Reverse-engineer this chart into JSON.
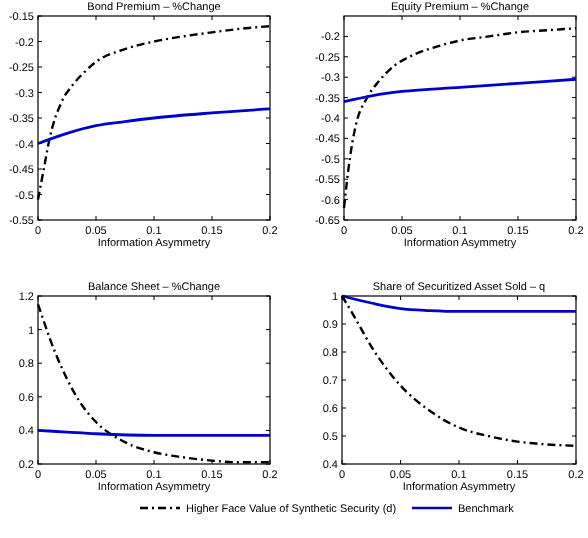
{
  "chart_data": [
    {
      "type": "line",
      "title": "Bond Premium – %Change",
      "xlabel": "Information Asymmetry",
      "xlim": [
        0,
        0.2
      ],
      "xticks": [
        0,
        0.05,
        0.1,
        0.15,
        0.2
      ],
      "ylim": [
        -0.55,
        -0.15
      ],
      "yticks": [
        -0.55,
        -0.5,
        -0.45,
        -0.4,
        -0.35,
        -0.3,
        -0.25,
        -0.2,
        -0.15
      ],
      "grid": false,
      "legend": false,
      "series": [
        {
          "color": "#000000",
          "line_style": "dashed",
          "x": [
            0,
            0.005,
            0.01,
            0.02,
            0.03,
            0.04,
            0.05,
            0.075,
            0.1,
            0.125,
            0.15,
            0.175,
            0.2
          ],
          "values": [
            -0.51,
            -0.45,
            -0.39,
            -0.32,
            -0.285,
            -0.26,
            -0.24,
            -0.215,
            -0.2,
            -0.19,
            -0.182,
            -0.175,
            -0.17
          ]
        },
        {
          "color": "#0000cc",
          "line_style": "solid",
          "x": [
            0,
            0.025,
            0.05,
            0.075,
            0.1,
            0.15,
            0.2
          ],
          "values": [
            -0.4,
            -0.38,
            -0.365,
            -0.357,
            -0.35,
            -0.34,
            -0.332
          ]
        }
      ]
    },
    {
      "type": "line",
      "title": "Equity Premium – %Change",
      "xlabel": "Information Asymmetry",
      "xlim": [
        0,
        0.2
      ],
      "xticks": [
        0,
        0.05,
        0.1,
        0.15,
        0.2
      ],
      "ylim": [
        -0.65,
        -0.15
      ],
      "yticks": [
        -0.65,
        -0.6,
        -0.55,
        -0.5,
        -0.45,
        -0.4,
        -0.35,
        -0.3,
        -0.25,
        -0.2
      ],
      "grid": false,
      "legend": false,
      "series": [
        {
          "color": "#000000",
          "line_style": "dashed",
          "x": [
            0,
            0.005,
            0.01,
            0.02,
            0.03,
            0.04,
            0.06,
            0.08,
            0.1,
            0.125,
            0.15,
            0.175,
            0.2
          ],
          "values": [
            -0.62,
            -0.5,
            -0.42,
            -0.35,
            -0.31,
            -0.28,
            -0.245,
            -0.225,
            -0.21,
            -0.2,
            -0.19,
            -0.185,
            -0.18
          ]
        },
        {
          "color": "#0000cc",
          "line_style": "solid",
          "x": [
            0,
            0.025,
            0.05,
            0.1,
            0.15,
            0.2
          ],
          "values": [
            -0.36,
            -0.345,
            -0.335,
            -0.325,
            -0.315,
            -0.305
          ]
        }
      ]
    },
    {
      "type": "line",
      "title": "Balance Sheet – %Change",
      "xlabel": "Information Asymmetry",
      "xlim": [
        0,
        0.2
      ],
      "xticks": [
        0,
        0.05,
        0.1,
        0.15,
        0.2
      ],
      "ylim": [
        0.2,
        1.2
      ],
      "yticks": [
        0.2,
        0.4,
        0.6,
        0.8,
        1,
        1.2
      ],
      "grid": false,
      "legend": false,
      "series": [
        {
          "color": "#000000",
          "line_style": "dashed",
          "x": [
            0,
            0.005,
            0.01,
            0.02,
            0.03,
            0.04,
            0.05,
            0.075,
            0.1,
            0.125,
            0.15,
            0.175,
            0.2
          ],
          "values": [
            1.15,
            1.05,
            0.95,
            0.78,
            0.64,
            0.53,
            0.45,
            0.33,
            0.27,
            0.24,
            0.22,
            0.21,
            0.21
          ]
        },
        {
          "color": "#0000cc",
          "line_style": "solid",
          "x": [
            0,
            0.025,
            0.05,
            0.1,
            0.15,
            0.2
          ],
          "values": [
            0.4,
            0.39,
            0.38,
            0.37,
            0.37,
            0.37
          ]
        }
      ]
    },
    {
      "type": "line",
      "title": "Share of Securitized Asset Sold – q",
      "xlabel": "Information Asymmetry",
      "xlim": [
        0,
        0.2
      ],
      "xticks": [
        0,
        0.05,
        0.1,
        0.15,
        0.2
      ],
      "ylim": [
        0.4,
        1
      ],
      "yticks": [
        0.4,
        0.5,
        0.6,
        0.7,
        0.8,
        0.9,
        1
      ],
      "grid": false,
      "legend": "bottom",
      "series": [
        {
          "name": "Higher Face Value of Synthetic Security (d)",
          "color": "#000000",
          "line_style": "dashed",
          "x": [
            0,
            0.01,
            0.025,
            0.05,
            0.075,
            0.1,
            0.125,
            0.15,
            0.175,
            0.2
          ],
          "values": [
            1,
            0.93,
            0.82,
            0.68,
            0.59,
            0.53,
            0.5,
            0.48,
            0.47,
            0.465
          ]
        },
        {
          "name": "Benchmark",
          "color": "#0000cc",
          "line_style": "solid",
          "x": [
            0,
            0.025,
            0.05,
            0.075,
            0.1,
            0.15,
            0.2
          ],
          "values": [
            1,
            0.975,
            0.955,
            0.948,
            0.945,
            0.945,
            0.945
          ]
        }
      ]
    }
  ]
}
